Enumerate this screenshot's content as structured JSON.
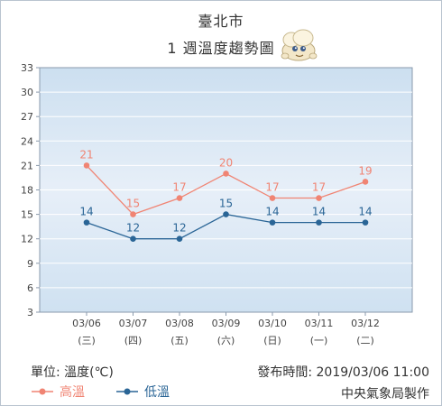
{
  "header": {
    "location": "臺北市",
    "subtitle": "1 週溫度趨勢圖"
  },
  "chart_data": {
    "type": "line",
    "categories": [
      "03/06",
      "03/07",
      "03/08",
      "03/09",
      "03/10",
      "03/11",
      "03/12"
    ],
    "weekdays": [
      "(三)",
      "(四)",
      "(五)",
      "(六)",
      "(日)",
      "(一)",
      "(二)"
    ],
    "series": [
      {
        "name": "高溫",
        "values": [
          21,
          15,
          17,
          20,
          17,
          17,
          19
        ],
        "color": "#f08473"
      },
      {
        "name": "低溫",
        "values": [
          14,
          12,
          12,
          15,
          14,
          14,
          14
        ],
        "color": "#2a6596"
      }
    ],
    "ylim": [
      3,
      33
    ],
    "yticks": [
      3,
      6,
      9,
      12,
      15,
      18,
      21,
      24,
      27,
      30,
      33
    ],
    "grid": true,
    "legend": "bottom-left"
  },
  "footer": {
    "unit_label": "單位: 溫度(℃)",
    "publish_time": "發布時間: 2019/03/06 11:00",
    "agency": "中央氣象局製作"
  },
  "mascot_icon": "cloud-mascot-icon"
}
